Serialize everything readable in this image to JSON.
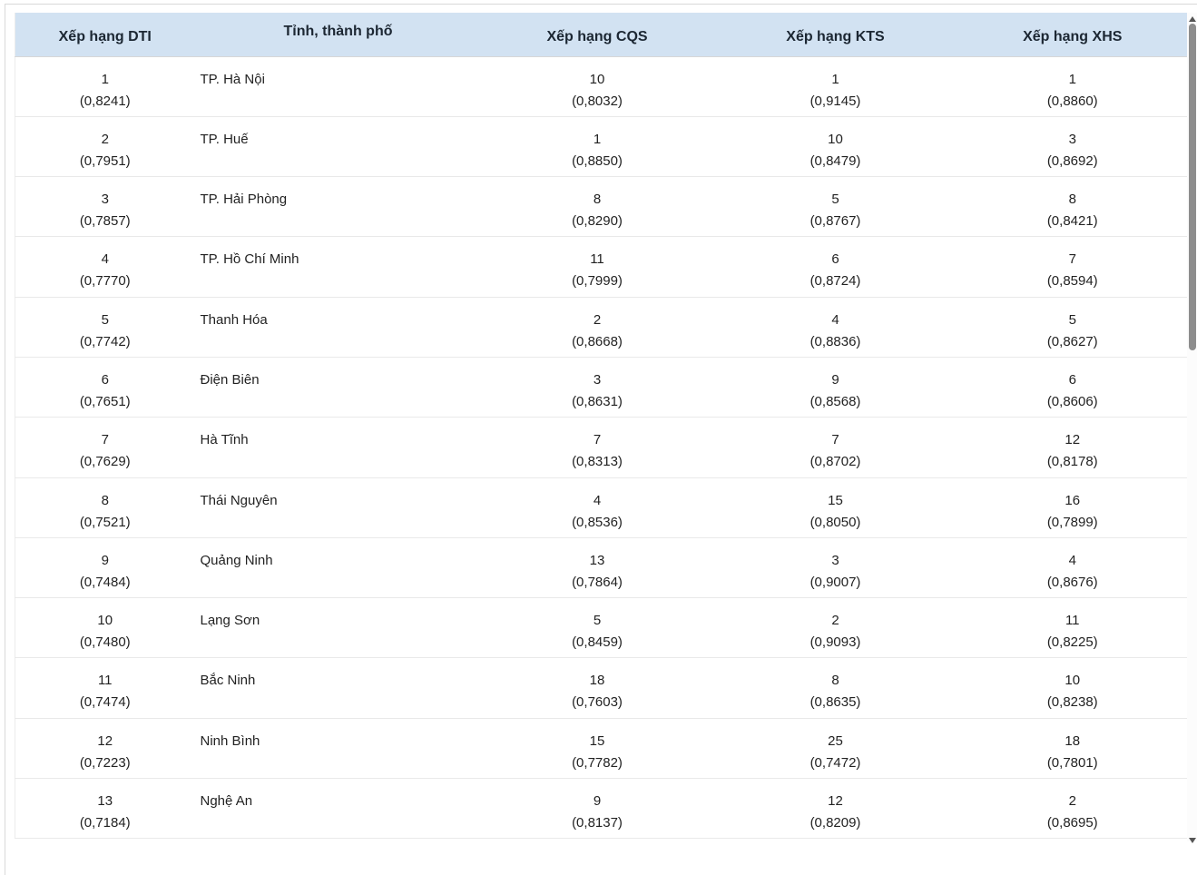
{
  "table": {
    "columns": [
      {
        "key": "dti",
        "label": "Xếp hạng DTI"
      },
      {
        "key": "province",
        "label": "Tỉnh, thành phố"
      },
      {
        "key": "cqs",
        "label": "Xếp hạng CQS"
      },
      {
        "key": "kts",
        "label": "Xếp hạng KTS"
      },
      {
        "key": "xhs",
        "label": "Xếp hạng XHS"
      }
    ],
    "rows": [
      {
        "dti_rank": "1",
        "dti_score": "(0,8241)",
        "province": "TP. Hà Nội",
        "cqs_rank": "10",
        "cqs_score": "(0,8032)",
        "kts_rank": "1",
        "kts_score": "(0,9145)",
        "xhs_rank": "1",
        "xhs_score": "(0,8860)"
      },
      {
        "dti_rank": "2",
        "dti_score": "(0,7951)",
        "province": "TP. Huế",
        "cqs_rank": "1",
        "cqs_score": "(0,8850)",
        "kts_rank": "10",
        "kts_score": "(0,8479)",
        "xhs_rank": "3",
        "xhs_score": "(0,8692)"
      },
      {
        "dti_rank": "3",
        "dti_score": "(0,7857)",
        "province": "TP. Hải Phòng",
        "cqs_rank": "8",
        "cqs_score": "(0,8290)",
        "kts_rank": "5",
        "kts_score": "(0,8767)",
        "xhs_rank": "8",
        "xhs_score": "(0,8421)"
      },
      {
        "dti_rank": "4",
        "dti_score": "(0,7770)",
        "province": "TP. Hồ Chí Minh",
        "cqs_rank": "11",
        "cqs_score": "(0,7999)",
        "kts_rank": "6",
        "kts_score": "(0,8724)",
        "xhs_rank": "7",
        "xhs_score": "(0,8594)"
      },
      {
        "dti_rank": "5",
        "dti_score": "(0,7742)",
        "province": "Thanh Hóa",
        "cqs_rank": "2",
        "cqs_score": "(0,8668)",
        "kts_rank": "4",
        "kts_score": "(0,8836)",
        "xhs_rank": "5",
        "xhs_score": "(0,8627)"
      },
      {
        "dti_rank": "6",
        "dti_score": "(0,7651)",
        "province": "Điện Biên",
        "cqs_rank": "3",
        "cqs_score": "(0,8631)",
        "kts_rank": "9",
        "kts_score": "(0,8568)",
        "xhs_rank": "6",
        "xhs_score": "(0,8606)"
      },
      {
        "dti_rank": "7",
        "dti_score": "(0,7629)",
        "province": "Hà Tĩnh",
        "cqs_rank": "7",
        "cqs_score": "(0,8313)",
        "kts_rank": "7",
        "kts_score": "(0,8702)",
        "xhs_rank": "12",
        "xhs_score": "(0,8178)"
      },
      {
        "dti_rank": "8",
        "dti_score": "(0,7521)",
        "province": "Thái Nguyên",
        "cqs_rank": "4",
        "cqs_score": "(0,8536)",
        "kts_rank": "15",
        "kts_score": "(0,8050)",
        "xhs_rank": "16",
        "xhs_score": "(0,7899)"
      },
      {
        "dti_rank": "9",
        "dti_score": "(0,7484)",
        "province": "Quảng Ninh",
        "cqs_rank": "13",
        "cqs_score": "(0,7864)",
        "kts_rank": "3",
        "kts_score": "(0,9007)",
        "xhs_rank": "4",
        "xhs_score": "(0,8676)"
      },
      {
        "dti_rank": "10",
        "dti_score": "(0,7480)",
        "province": "Lạng Sơn",
        "cqs_rank": "5",
        "cqs_score": "(0,8459)",
        "kts_rank": "2",
        "kts_score": "(0,9093)",
        "xhs_rank": "11",
        "xhs_score": "(0,8225)"
      },
      {
        "dti_rank": "11",
        "dti_score": "(0,7474)",
        "province": "Bắc Ninh",
        "cqs_rank": "18",
        "cqs_score": "(0,7603)",
        "kts_rank": "8",
        "kts_score": "(0,8635)",
        "xhs_rank": "10",
        "xhs_score": "(0,8238)"
      },
      {
        "dti_rank": "12",
        "dti_score": "(0,7223)",
        "province": "Ninh Bình",
        "cqs_rank": "15",
        "cqs_score": "(0,7782)",
        "kts_rank": "25",
        "kts_score": "(0,7472)",
        "xhs_rank": "18",
        "xhs_score": "(0,7801)"
      },
      {
        "dti_rank": "13",
        "dti_score": "(0,7184)",
        "province": "Nghệ An",
        "cqs_rank": "9",
        "cqs_score": "(0,8137)",
        "kts_rank": "12",
        "kts_score": "(0,8209)",
        "xhs_rank": "2",
        "xhs_score": "(0,8695)"
      }
    ]
  },
  "colors": {
    "header_bg": "#d2e2f2",
    "header_text": "#1c2733",
    "body_text": "#222222",
    "row_border": "#e9e9e9",
    "panel_border": "#d9d9d9",
    "scrollbar_thumb": "#8d8d8d",
    "scrollbar_arrow": "#555555"
  }
}
